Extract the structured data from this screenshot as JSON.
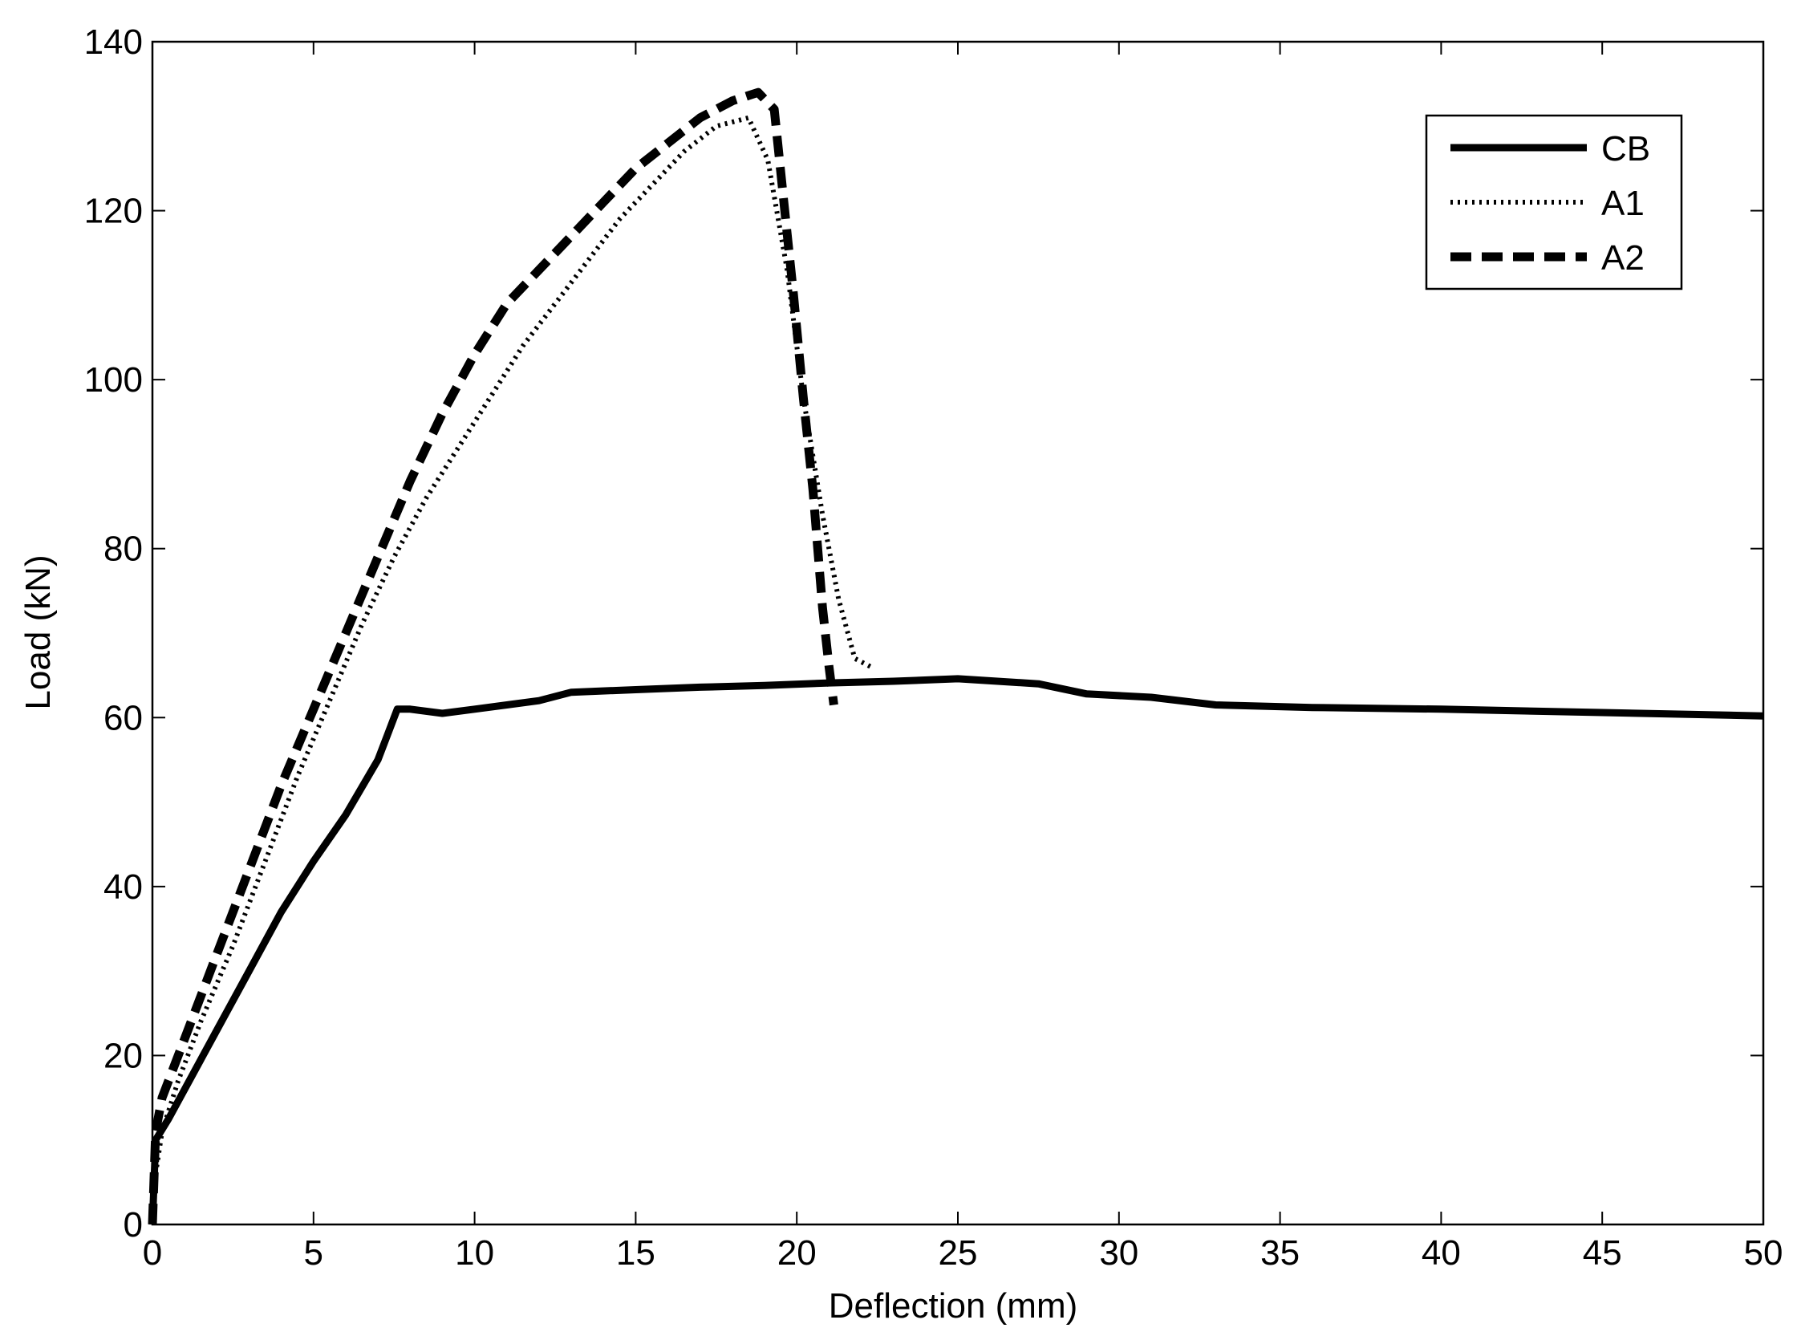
{
  "chart_data": {
    "type": "line",
    "title": "",
    "xlabel": "Deflection (mm)",
    "ylabel": "Load (kN)",
    "xlim": [
      0,
      50
    ],
    "ylim": [
      0,
      140
    ],
    "xticks": [
      0,
      5,
      10,
      15,
      20,
      25,
      30,
      35,
      40,
      45,
      50
    ],
    "yticks": [
      0,
      20,
      40,
      60,
      80,
      100,
      120,
      140
    ],
    "grid": false,
    "legend_position": "top-right",
    "series": [
      {
        "name": "CB",
        "style": "solid",
        "color": "#000000",
        "x": [
          0,
          0.1,
          0.5,
          1,
          2,
          3,
          4,
          5,
          6,
          7,
          7.3,
          7.6,
          8,
          9,
          10,
          12,
          13,
          15,
          17,
          19,
          21,
          23,
          25,
          27.5,
          29,
          31,
          33,
          36,
          40,
          45,
          50
        ],
        "y": [
          0,
          10,
          12.5,
          16,
          23,
          30,
          37,
          43,
          48.5,
          55,
          58,
          61,
          61,
          60.5,
          61,
          62,
          63,
          63.3,
          63.6,
          63.8,
          64.1,
          64.3,
          64.6,
          64,
          62.8,
          62.4,
          61.5,
          61.2,
          61,
          60.6,
          60.2
        ]
      },
      {
        "name": "A1",
        "style": "dotted",
        "color": "#000000",
        "x": [
          0,
          0.1,
          0.3,
          0.8,
          1.5,
          2.5,
          3.5,
          4.5,
          5.5,
          6.5,
          7.5,
          8.5,
          9.5,
          10.5,
          11.5,
          12.5,
          13.5,
          14.5,
          15.5,
          16.5,
          17.5,
          18.5,
          19.1,
          19.7,
          20.2,
          20.8,
          21.3,
          21.8,
          22.3
        ],
        "y": [
          0,
          6,
          11,
          17,
          24,
          33,
          43,
          53,
          62,
          71,
          79,
          86,
          92,
          98,
          104,
          109,
          114,
          119,
          123,
          127,
          130,
          131,
          126,
          113,
          98,
          84,
          74,
          67,
          66
        ]
      },
      {
        "name": "A2",
        "style": "dashed",
        "color": "#000000",
        "x": [
          0,
          0.1,
          0.3,
          1,
          2,
          3,
          4,
          5,
          6,
          7,
          8,
          9,
          10,
          11,
          12,
          13,
          14,
          15,
          16,
          17,
          18,
          18.8,
          19.3,
          19.6,
          19.9,
          20.2,
          20.5,
          20.8,
          21.0,
          21.15
        ],
        "y": [
          0,
          11,
          15,
          22,
          32,
          42,
          52,
          61,
          70,
          79,
          88,
          96,
          103,
          109,
          113,
          117,
          121,
          125,
          128,
          131,
          133,
          134,
          132,
          121,
          110,
          98,
          87,
          73,
          66,
          61.5
        ]
      }
    ]
  }
}
